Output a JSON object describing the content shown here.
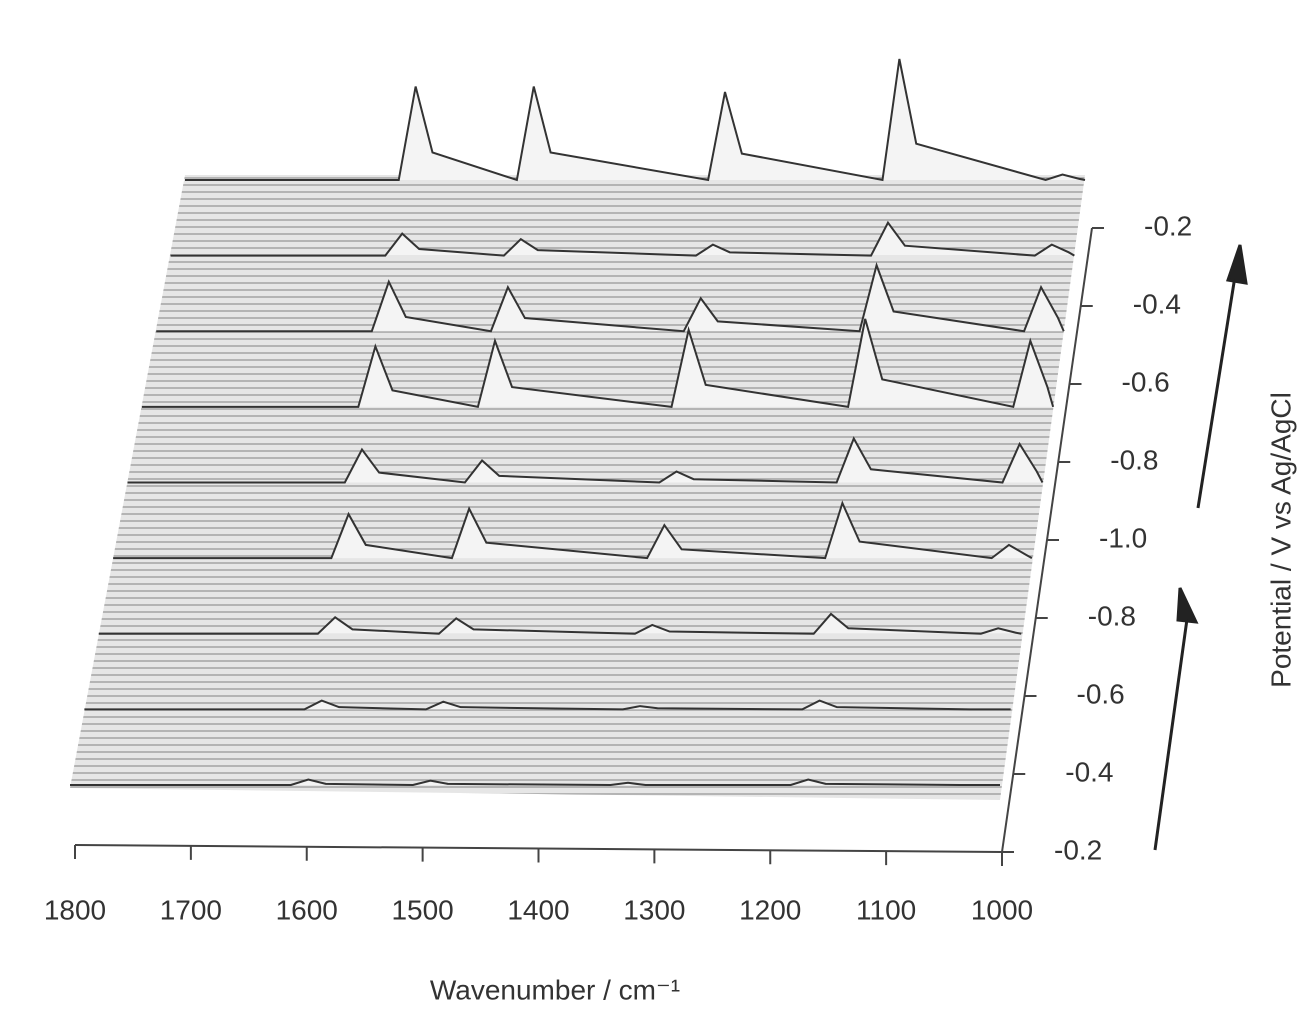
{
  "chart_data": {
    "type": "waterfall",
    "x_label": "Wavenumber / cm⁻¹",
    "z_label": "Potential / V vs Ag/AgCl",
    "xlim": [
      1800,
      1000
    ],
    "xticks": [
      1800,
      1700,
      1600,
      1500,
      1400,
      1300,
      1200,
      1100,
      1000
    ],
    "z_categories": [
      "-0.2",
      "-0.4",
      "-0.6",
      "-0.8",
      "-1.0",
      "-0.8",
      "-0.6",
      "-0.4",
      "-0.2"
    ],
    "x": [
      1800,
      1610,
      1595,
      1580,
      1505,
      1490,
      1475,
      1335,
      1320,
      1305,
      1180,
      1165,
      1150,
      1035,
      1020,
      1005,
      1000
    ],
    "series": [
      {
        "color": "#333333",
        "values": [
          0,
          0,
          5,
          1,
          0,
          4,
          1,
          0,
          2,
          0,
          0,
          5,
          1,
          0,
          0,
          0,
          0
        ]
      },
      {
        "color": "#333333",
        "values": [
          0,
          0,
          8,
          2,
          0,
          7,
          2,
          0,
          3,
          1,
          0,
          8,
          2,
          0,
          0,
          0,
          0
        ]
      },
      {
        "color": "#333333",
        "values": [
          0,
          0,
          15,
          4,
          0,
          14,
          4,
          0,
          8,
          2,
          0,
          18,
          5,
          0,
          5,
          1,
          0
        ]
      },
      {
        "color": "#333333",
        "values": [
          0,
          0,
          40,
          12,
          0,
          45,
          14,
          0,
          30,
          8,
          0,
          50,
          15,
          0,
          12,
          3,
          0
        ]
      },
      {
        "color": "#333333",
        "values": [
          0,
          0,
          30,
          9,
          0,
          20,
          6,
          0,
          10,
          3,
          0,
          40,
          12,
          0,
          35,
          10,
          0
        ]
      },
      {
        "color": "#333333",
        "values": [
          0,
          0,
          55,
          15,
          0,
          60,
          18,
          0,
          70,
          20,
          0,
          80,
          25,
          0,
          60,
          18,
          0
        ]
      },
      {
        "color": "#333333",
        "values": [
          0,
          0,
          45,
          13,
          0,
          40,
          12,
          0,
          30,
          9,
          0,
          60,
          18,
          0,
          40,
          12,
          0
        ]
      },
      {
        "color": "#333333",
        "values": [
          0,
          0,
          20,
          6,
          0,
          15,
          5,
          0,
          10,
          3,
          0,
          30,
          9,
          0,
          10,
          3,
          0
        ]
      },
      {
        "color": "#333333",
        "values": [
          0,
          0,
          85,
          25,
          0,
          85,
          25,
          0,
          80,
          24,
          0,
          110,
          33,
          0,
          5,
          1,
          0
        ]
      }
    ]
  }
}
